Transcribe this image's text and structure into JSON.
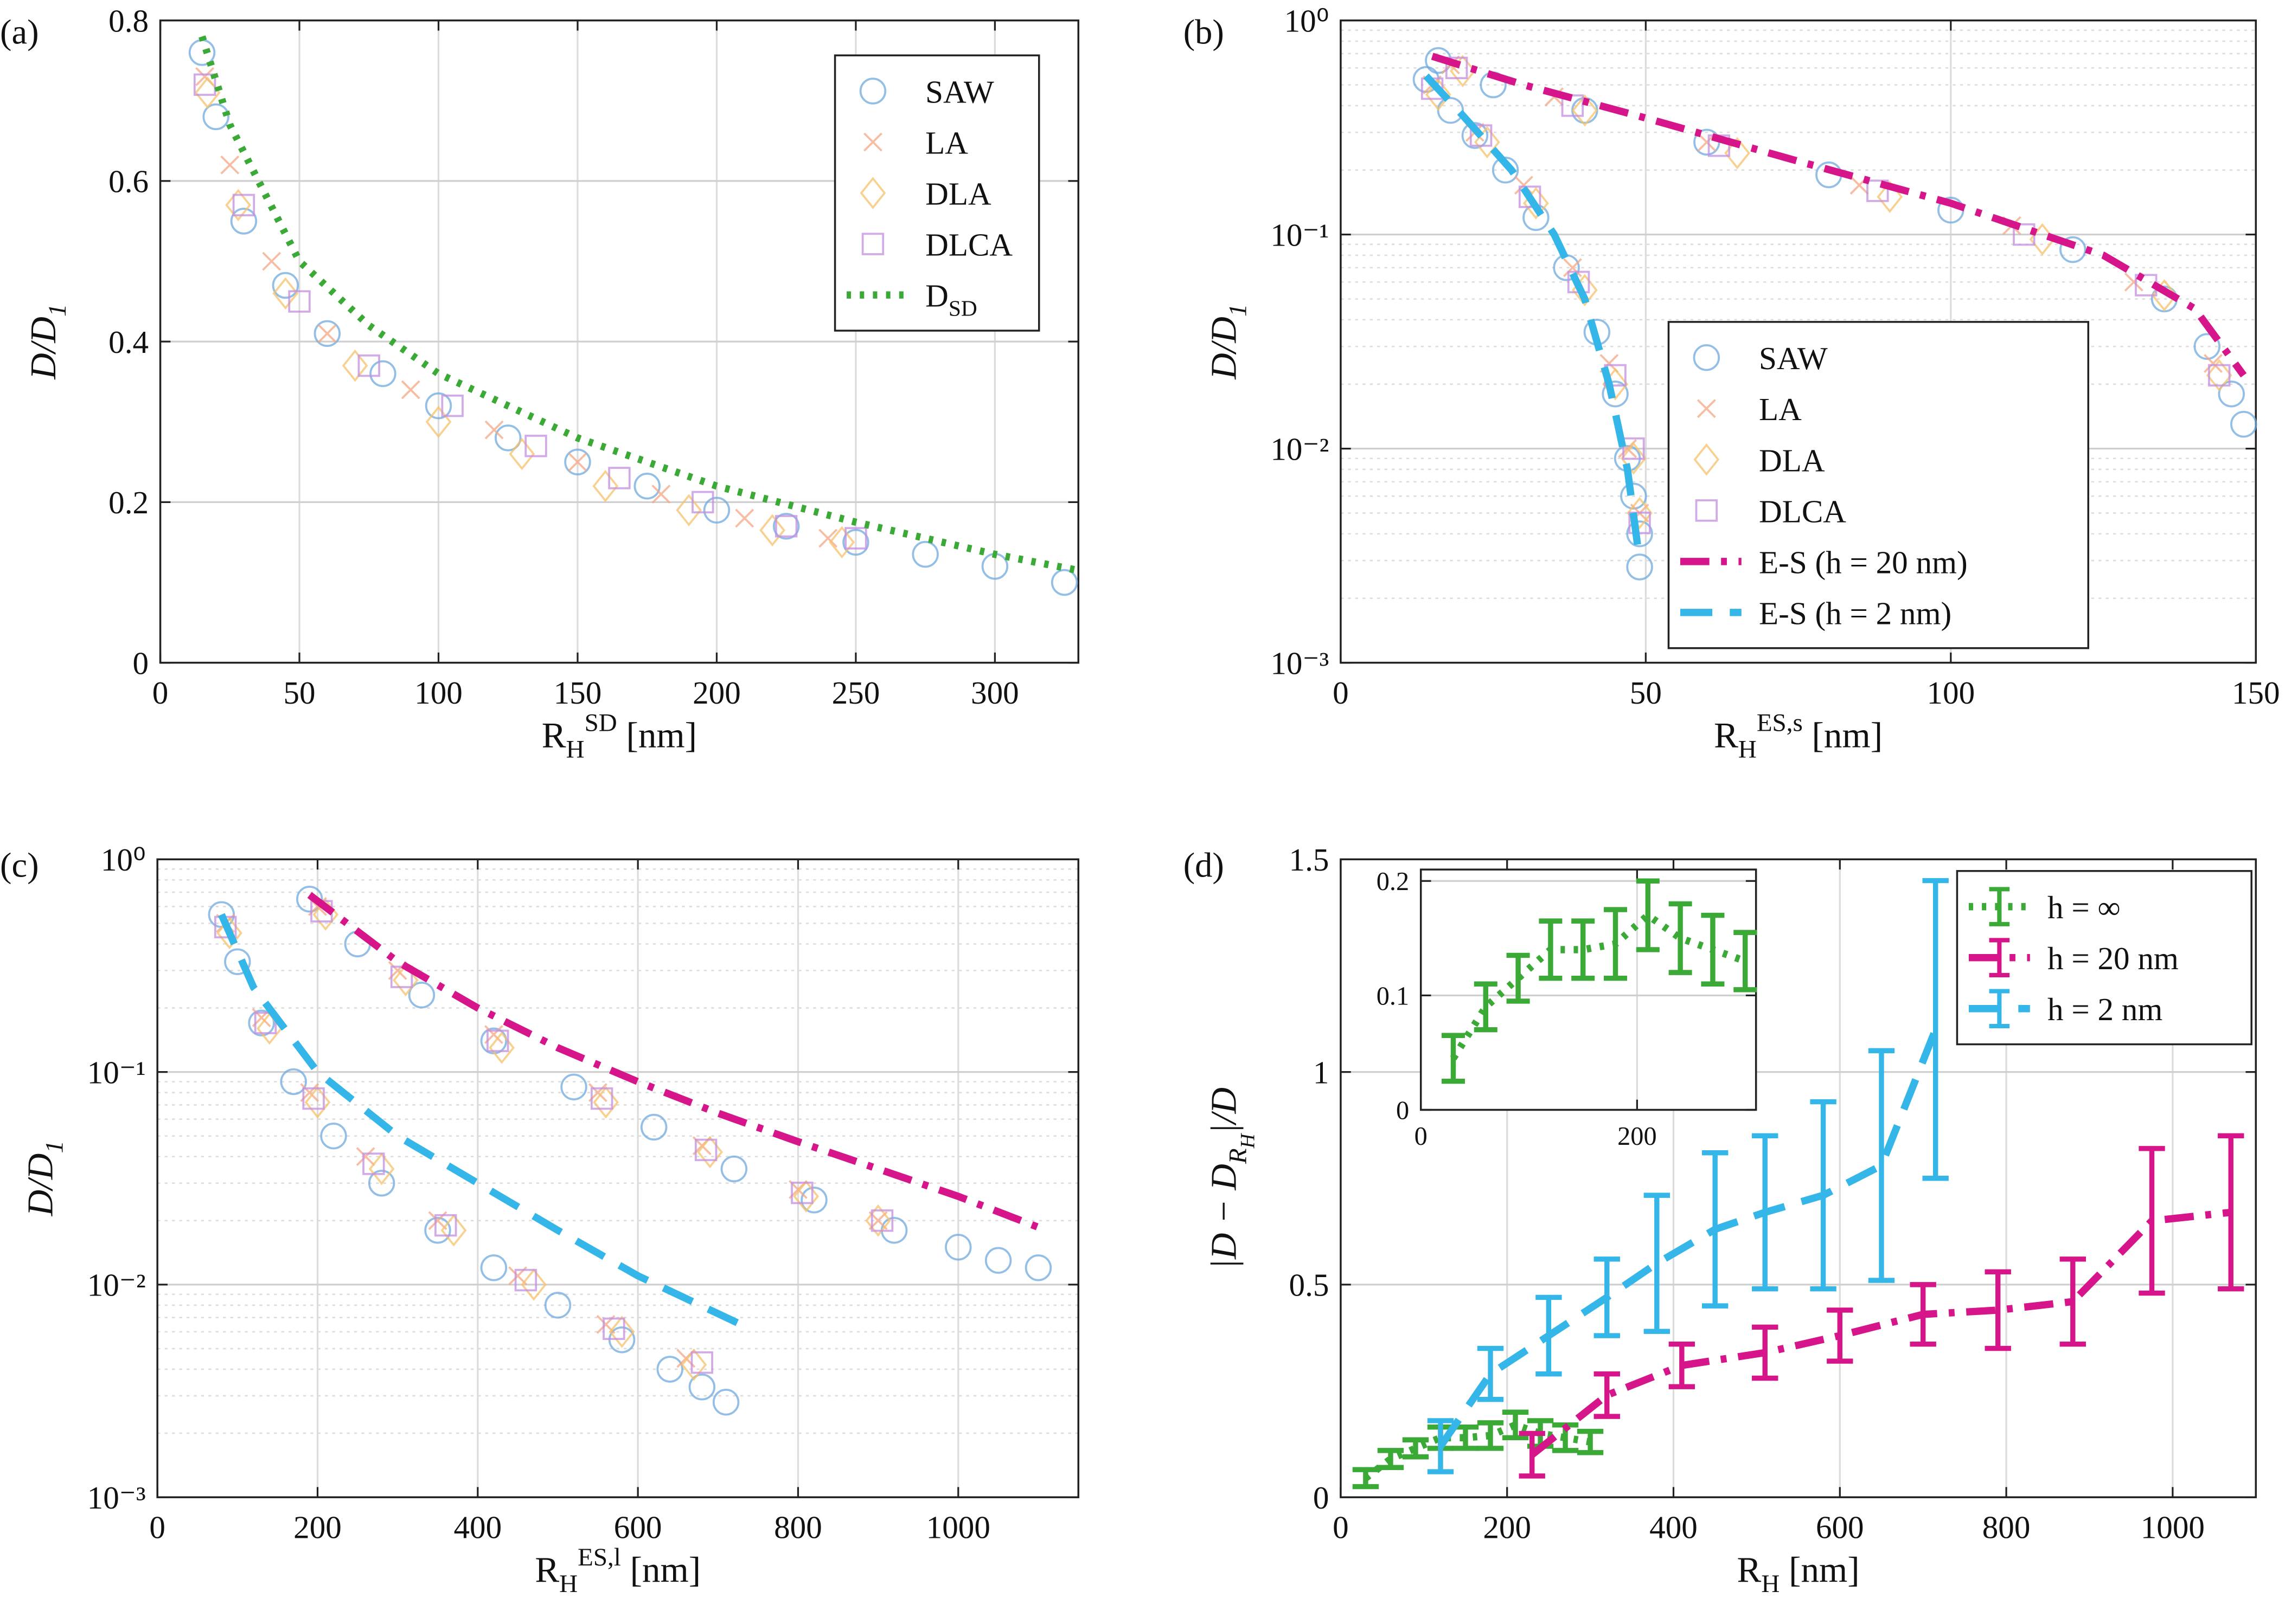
{
  "chart_data": [
    {
      "type": "scatter",
      "label": "(a)",
      "xlabel": [
        {
          "text": "R"
        },
        {
          "text": "H",
          "pos": "sub"
        },
        {
          "text": "SD",
          "pos": "sup"
        },
        {
          "text": " [nm]"
        }
      ],
      "ylabel": [
        {
          "text": "D/D"
        },
        {
          "text": "1",
          "pos": "sub"
        }
      ],
      "xlim": [
        0,
        330
      ],
      "ylim": [
        0,
        0.8
      ],
      "xticks": [
        0,
        50,
        100,
        150,
        200,
        250,
        300
      ],
      "yticks": [
        0,
        0.2,
        0.4,
        0.6,
        0.8
      ],
      "grid": true,
      "legend": "upper right",
      "series": [
        {
          "name": "SAW",
          "color": "#6fa8dc",
          "marker": "o",
          "x": [
            15,
            20,
            30,
            45,
            60,
            80,
            100,
            125,
            150,
            175,
            200,
            225,
            250,
            275,
            300,
            325
          ],
          "values": [
            0.76,
            0.68,
            0.55,
            0.47,
            0.41,
            0.36,
            0.32,
            0.28,
            0.25,
            0.22,
            0.19,
            0.17,
            0.15,
            0.135,
            0.12,
            0.1
          ]
        },
        {
          "name": "LA",
          "color": "#f4a582",
          "marker": "x",
          "x": [
            16,
            25,
            40,
            60,
            90,
            120,
            150,
            180,
            210,
            240
          ],
          "values": [
            0.73,
            0.62,
            0.5,
            0.41,
            0.34,
            0.29,
            0.25,
            0.21,
            0.18,
            0.155
          ]
        },
        {
          "name": "DLA",
          "color": "#f5c26b",
          "marker": "d",
          "x": [
            17,
            28,
            45,
            70,
            100,
            130,
            160,
            190,
            220,
            245
          ],
          "values": [
            0.71,
            0.57,
            0.46,
            0.37,
            0.3,
            0.26,
            0.22,
            0.19,
            0.165,
            0.15
          ]
        },
        {
          "name": "DLCA",
          "color": "#c38ee0",
          "marker": "s",
          "x": [
            16,
            30,
            50,
            75,
            105,
            135,
            165,
            195,
            225,
            250
          ],
          "values": [
            0.72,
            0.57,
            0.45,
            0.37,
            0.32,
            0.27,
            0.23,
            0.2,
            0.17,
            0.155
          ]
        },
        {
          "name": [
            {
              "text": "D"
            },
            {
              "text": "SD",
              "pos": "sub"
            }
          ],
          "color": "#3aa935",
          "kind": "line",
          "style": "dotted",
          "x": [
            15,
            25,
            50,
            75,
            100,
            150,
            200,
            250,
            300,
            330
          ],
          "values": [
            0.78,
            0.67,
            0.5,
            0.42,
            0.36,
            0.28,
            0.22,
            0.175,
            0.135,
            0.115
          ]
        }
      ]
    },
    {
      "type": "scatter",
      "label": "(b)",
      "xlabel": [
        {
          "text": "R"
        },
        {
          "text": "H",
          "pos": "sub"
        },
        {
          "text": "ES,s",
          "pos": "sup"
        },
        {
          "text": " [nm]"
        }
      ],
      "ylabel": [
        {
          "text": "D/D"
        },
        {
          "text": "1",
          "pos": "sub"
        }
      ],
      "xlim": [
        0,
        150
      ],
      "ylim": [
        0.001,
        1
      ],
      "ylog": true,
      "xticks": [
        0,
        50,
        100,
        150
      ],
      "yticks": [
        {
          "value": 0.001,
          "label": "10⁻³"
        },
        {
          "value": 0.01,
          "label": "10⁻²"
        },
        {
          "value": 0.1,
          "label": "10⁻¹"
        },
        {
          "value": 1,
          "label": "10⁰"
        }
      ],
      "grid": true,
      "legend": "lower right",
      "series": [
        {
          "name": "SAW",
          "color": "#6fa8dc",
          "marker": "o",
          "x": [
            14,
            18,
            22,
            27,
            32,
            37,
            42,
            45,
            47,
            48,
            49,
            49,
            16,
            25,
            40,
            60,
            80,
            100,
            120,
            135,
            142,
            146,
            148
          ],
          "values": [
            0.53,
            0.38,
            0.29,
            0.2,
            0.12,
            0.07,
            0.035,
            0.018,
            0.009,
            0.006,
            0.004,
            0.0028,
            0.65,
            0.5,
            0.38,
            0.27,
            0.19,
            0.13,
            0.085,
            0.05,
            0.03,
            0.018,
            0.013
          ]
        },
        {
          "name": "LA",
          "color": "#f4a582",
          "marker": "x",
          "x": [
            15,
            22,
            30,
            38,
            44,
            47,
            49,
            18,
            35,
            60,
            85,
            110,
            130,
            143
          ],
          "values": [
            0.5,
            0.3,
            0.17,
            0.07,
            0.025,
            0.01,
            0.005,
            0.62,
            0.44,
            0.27,
            0.17,
            0.11,
            0.06,
            0.025
          ]
        },
        {
          "name": "DLA",
          "color": "#f5c26b",
          "marker": "d",
          "x": [
            16,
            24,
            32,
            40,
            45,
            48,
            49,
            20,
            40,
            65,
            90,
            115,
            135,
            144
          ],
          "values": [
            0.45,
            0.27,
            0.14,
            0.055,
            0.02,
            0.009,
            0.005,
            0.58,
            0.38,
            0.24,
            0.15,
            0.095,
            0.052,
            0.022
          ]
        },
        {
          "name": "DLCA",
          "color": "#c38ee0",
          "marker": "s",
          "x": [
            15,
            23,
            31,
            39,
            45,
            48,
            49,
            19,
            38,
            62,
            88,
            112,
            132,
            144
          ],
          "values": [
            0.48,
            0.29,
            0.15,
            0.06,
            0.022,
            0.01,
            0.0045,
            0.6,
            0.4,
            0.26,
            0.16,
            0.1,
            0.058,
            0.022
          ]
        },
        {
          "name": "E-S (h = 20 nm)",
          "color": "#d6158a",
          "kind": "line",
          "style": "dashdot",
          "x": [
            15,
            30,
            50,
            75,
            100,
            125,
            140,
            148
          ],
          "values": [
            0.68,
            0.5,
            0.35,
            0.22,
            0.14,
            0.08,
            0.045,
            0.022
          ]
        },
        {
          "name": "E-S (h = 2 nm)",
          "color": "#35b6e8",
          "kind": "line",
          "style": "dashed",
          "x": [
            14,
            20,
            28,
            35,
            40,
            44,
            47,
            49
          ],
          "values": [
            0.55,
            0.36,
            0.2,
            0.1,
            0.05,
            0.02,
            0.008,
            0.003
          ]
        }
      ]
    },
    {
      "type": "scatter",
      "label": "(c)",
      "xlabel": [
        {
          "text": "R"
        },
        {
          "text": "H",
          "pos": "sub"
        },
        {
          "text": "ES,l",
          "pos": "sup"
        },
        {
          "text": " [nm]"
        }
      ],
      "ylabel": [
        {
          "text": "D/D"
        },
        {
          "text": "1",
          "pos": "sub"
        }
      ],
      "xlim": [
        0,
        1150
      ],
      "ylim": [
        0.001,
        1
      ],
      "ylog": true,
      "xticks": [
        0,
        200,
        400,
        600,
        800,
        1000
      ],
      "yticks": [
        {
          "value": 0.001,
          "label": "10⁻³"
        },
        {
          "value": 0.01,
          "label": "10⁻²"
        },
        {
          "value": 0.1,
          "label": "10⁻¹"
        },
        {
          "value": 1,
          "label": "10⁰"
        }
      ],
      "grid": true,
      "series": [
        {
          "color": "#6fa8dc",
          "marker": "o",
          "x": [
            80,
            100,
            130,
            170,
            220,
            280,
            350,
            420,
            500,
            580,
            640,
            680,
            710,
            190,
            250,
            330,
            420,
            520,
            620,
            720,
            820,
            920,
            1000,
            1050,
            1100
          ],
          "values": [
            0.55,
            0.33,
            0.17,
            0.09,
            0.05,
            0.03,
            0.018,
            0.012,
            0.008,
            0.0055,
            0.004,
            0.0033,
            0.0028,
            0.65,
            0.4,
            0.23,
            0.14,
            0.085,
            0.055,
            0.035,
            0.025,
            0.018,
            0.015,
            0.013,
            0.012
          ]
        },
        {
          "color": "#f4a582",
          "marker": "x",
          "x": [
            85,
            130,
            190,
            260,
            350,
            450,
            560,
            660,
            200,
            300,
            420,
            550,
            680,
            800,
            900
          ],
          "values": [
            0.5,
            0.18,
            0.08,
            0.04,
            0.02,
            0.011,
            0.0065,
            0.0045,
            0.6,
            0.3,
            0.15,
            0.08,
            0.045,
            0.028,
            0.02
          ]
        },
        {
          "color": "#f5c26b",
          "marker": "d",
          "x": [
            90,
            140,
            200,
            280,
            370,
            470,
            580,
            670,
            210,
            310,
            430,
            560,
            690,
            810,
            900
          ],
          "values": [
            0.45,
            0.16,
            0.072,
            0.035,
            0.018,
            0.01,
            0.006,
            0.0042,
            0.55,
            0.27,
            0.13,
            0.072,
            0.042,
            0.026,
            0.02
          ]
        },
        {
          "color": "#c38ee0",
          "marker": "s",
          "x": [
            85,
            135,
            195,
            270,
            360,
            460,
            570,
            680,
            205,
            305,
            425,
            555,
            685,
            805,
            905
          ],
          "values": [
            0.48,
            0.17,
            0.075,
            0.037,
            0.019,
            0.0105,
            0.0062,
            0.0043,
            0.57,
            0.28,
            0.14,
            0.075,
            0.043,
            0.027,
            0.02
          ]
        },
        {
          "color": "#35b6e8",
          "kind": "line",
          "style": "dashed",
          "x": [
            80,
            120,
            200,
            300,
            400,
            500,
            600,
            740
          ],
          "values": [
            0.55,
            0.25,
            0.1,
            0.05,
            0.03,
            0.018,
            0.011,
            0.0062
          ]
        },
        {
          "color": "#d6158a",
          "kind": "line",
          "style": "dashdot",
          "x": [
            190,
            300,
            400,
            500,
            600,
            700,
            800,
            900,
            1000,
            1110
          ],
          "values": [
            0.68,
            0.33,
            0.2,
            0.13,
            0.09,
            0.064,
            0.047,
            0.035,
            0.026,
            0.018
          ]
        }
      ]
    },
    {
      "type": "errorbar",
      "label": "(d)",
      "xlabel": [
        {
          "text": "R"
        },
        {
          "text": "H",
          "pos": "sub"
        },
        {
          "text": " [nm]"
        }
      ],
      "ylabel": [
        {
          "text": "|D − D"
        },
        {
          "text": "R",
          "pos": "sub"
        },
        {
          "text": "H",
          "pos": "subsub"
        },
        {
          "text": "|/D"
        }
      ],
      "xlim": [
        0,
        1100
      ],
      "ylim": [
        0,
        1.5
      ],
      "xticks": [
        0,
        200,
        400,
        600,
        800,
        1000
      ],
      "yticks": [
        0,
        0.5,
        1,
        1.5
      ],
      "grid": true,
      "legend": "upper right",
      "series": [
        {
          "name": "h = ∞",
          "color": "#3aa935",
          "style": "dotted",
          "x": [
            30,
            60,
            90,
            120,
            150,
            180,
            210,
            240,
            270,
            300
          ],
          "values": [
            0.045,
            0.09,
            0.115,
            0.14,
            0.14,
            0.145,
            0.17,
            0.15,
            0.14,
            0.13
          ],
          "errors": [
            0.02,
            0.02,
            0.02,
            0.025,
            0.025,
            0.03,
            0.03,
            0.03,
            0.03,
            0.025
          ]
        },
        {
          "name": "h = 20 nm",
          "color": "#d6158a",
          "style": "dashdot",
          "x": [
            230,
            320,
            410,
            510,
            600,
            700,
            790,
            880,
            975,
            1070
          ],
          "values": [
            0.1,
            0.24,
            0.31,
            0.34,
            0.38,
            0.43,
            0.44,
            0.46,
            0.65,
            0.67
          ],
          "errors": [
            0.05,
            0.05,
            0.05,
            0.06,
            0.06,
            0.07,
            0.09,
            0.1,
            0.17,
            0.18
          ]
        },
        {
          "name": "h = 2 nm",
          "color": "#35b6e8",
          "style": "dashed",
          "x": [
            120,
            180,
            250,
            320,
            380,
            450,
            510,
            580,
            650,
            715
          ],
          "values": [
            0.12,
            0.29,
            0.38,
            0.47,
            0.55,
            0.63,
            0.67,
            0.71,
            0.78,
            1.1
          ],
          "errors": [
            0.06,
            0.06,
            0.09,
            0.09,
            0.16,
            0.18,
            0.18,
            0.22,
            0.27,
            0.35
          ]
        }
      ],
      "inset": {
        "xlim": [
          0,
          310
        ],
        "ylim": [
          0,
          0.21
        ],
        "xticks": [
          0,
          200
        ],
        "yticks": [
          0,
          0.1,
          0.2
        ],
        "grid": true
      }
    }
  ]
}
